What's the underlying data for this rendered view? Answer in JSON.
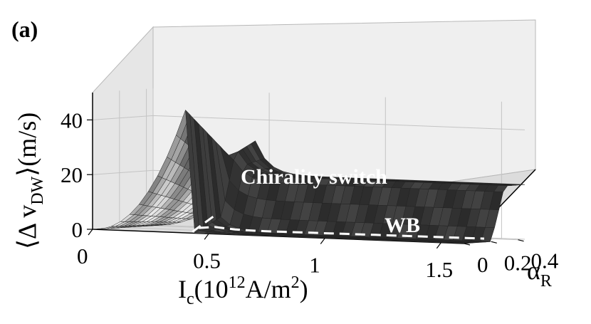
{
  "chart_data": {
    "type": "surface3d",
    "panel_label": "(a)",
    "x_axis": {
      "label_main": "I",
      "label_sub": "c",
      "label_rest": "(10",
      "label_sup": "12",
      "label_tail": "A/m",
      "label_sup2": "2",
      "label_end": ")",
      "ticks": [
        0,
        0.5,
        1,
        1.5
      ],
      "tick_labels": [
        "0",
        "0.5",
        "1",
        "1.5"
      ],
      "range": [
        0,
        1.6
      ]
    },
    "y_axis": {
      "label_main": "α",
      "label_sub": "R",
      "ticks": [
        0,
        0.2,
        0.4
      ],
      "tick_labels": [
        "0",
        "0.2",
        "0.4"
      ],
      "range": [
        0,
        0.45
      ]
    },
    "z_axis": {
      "label_open": "⟨Δ v",
      "label_sub": "DW",
      "label_close": "⟩(m/s)",
      "ticks": [
        0,
        20,
        40
      ],
      "tick_labels": [
        "0",
        "20",
        "40"
      ],
      "range": [
        0,
        50
      ]
    },
    "surface": {
      "peak": {
        "x": 0.4,
        "y": 0,
        "z": 50
      },
      "plateau_z": 20,
      "threshold_x": 0.42
    },
    "annotations": [
      {
        "text": "Chirality switch",
        "x": 1.1,
        "y": 0.32,
        "z": 21
      },
      {
        "text": "WB",
        "x": 1.3,
        "y": 0.08,
        "z": 2
      }
    ],
    "grid": true
  }
}
